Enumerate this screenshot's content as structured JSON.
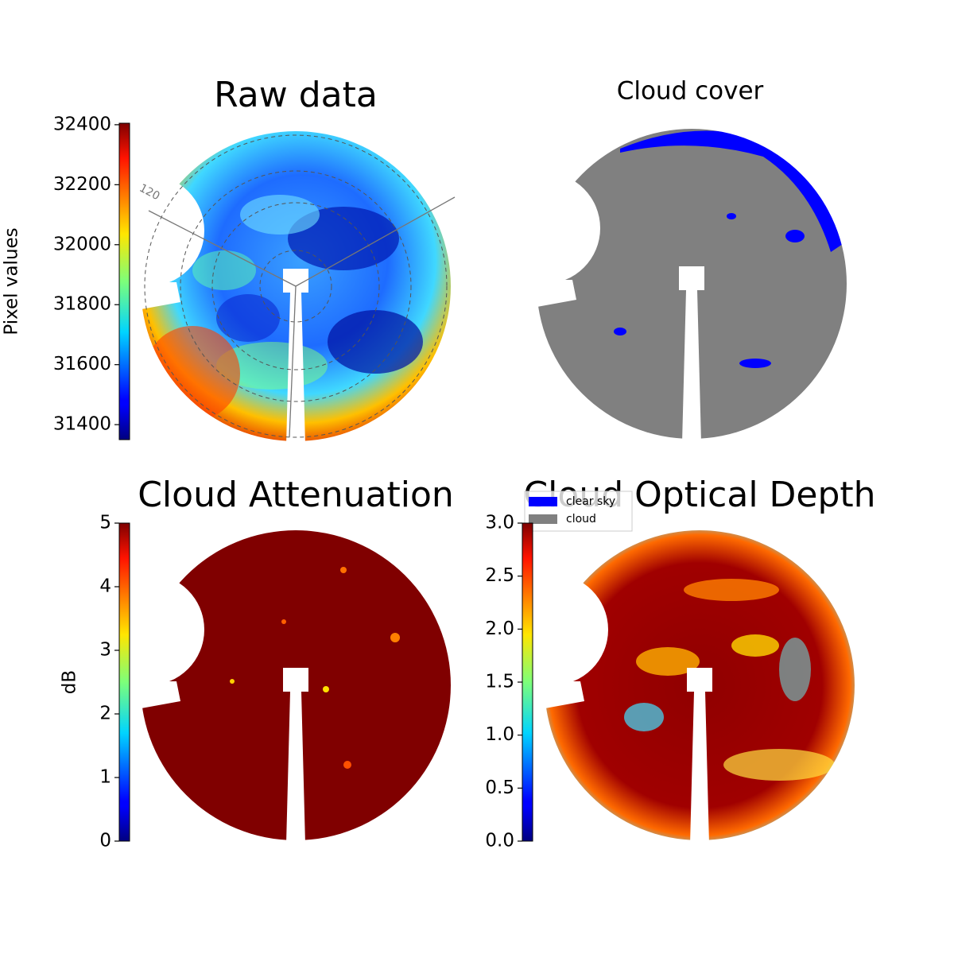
{
  "chart_data": [
    {
      "type": "image",
      "title": "Raw data",
      "colorbar_label": "Pixel values",
      "colormap": "jet",
      "ylim": [
        31350,
        32405
      ],
      "yticks": [
        31400,
        31600,
        31800,
        32000,
        32200,
        32400
      ],
      "polar_labels": [
        "120"
      ]
    },
    {
      "type": "image",
      "title": "Cloud cover",
      "legend": [
        {
          "name": "clear sky",
          "color": "#0000ff"
        },
        {
          "name": "cloud",
          "color": "#808080"
        }
      ]
    },
    {
      "type": "image",
      "title": "Cloud Attenuation",
      "colorbar_label": "dB",
      "colormap": "jet",
      "ylim": [
        0,
        5
      ],
      "yticks": [
        0,
        1,
        2,
        3,
        4,
        5
      ]
    },
    {
      "type": "image",
      "title": "Cloud Optical Depth",
      "colormap": "jet",
      "ylim": [
        0,
        3
      ],
      "yticks": [
        {
          "value": 0,
          "label": "0.0"
        },
        {
          "value": 0.5,
          "label": "0.5"
        },
        {
          "value": 1,
          "label": "1.0"
        },
        {
          "value": 1.5,
          "label": "1.5"
        },
        {
          "value": 2,
          "label": "2.0"
        },
        {
          "value": 2.5,
          "label": "2.5"
        },
        {
          "value": 3,
          "label": "3.0"
        }
      ]
    }
  ]
}
